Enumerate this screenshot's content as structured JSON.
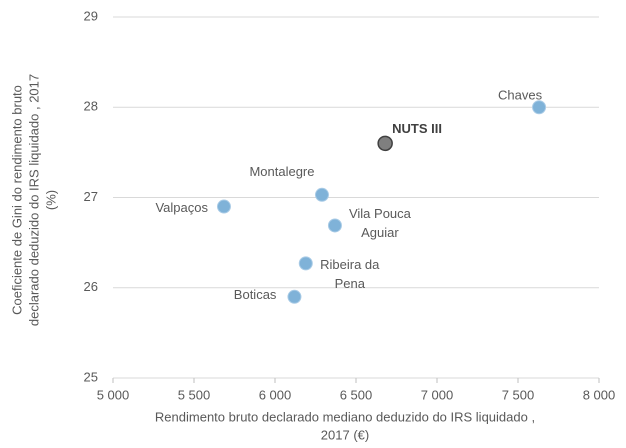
{
  "chart_data": {
    "type": "scatter",
    "points": [
      {
        "label": [
          "Chaves"
        ],
        "x": 7630,
        "y": 28.0,
        "color": "#7fb2d8"
      },
      {
        "label": [
          "NUTS III"
        ],
        "x": 6680,
        "y": 27.6,
        "color": "#7f7f7f"
      },
      {
        "label": [
          "Montalegre"
        ],
        "x": 6290,
        "y": 27.03,
        "color": "#7fb2d8"
      },
      {
        "label": [
          "Valpaços"
        ],
        "x": 5685,
        "y": 26.9,
        "color": "#7fb2d8"
      },
      {
        "label": [
          "Vila Pouca",
          "Aguiar"
        ],
        "x": 6370,
        "y": 26.69,
        "color": "#7fb2d8"
      },
      {
        "label": [
          "Ribeira da",
          "Pena"
        ],
        "x": 6190,
        "y": 26.27,
        "color": "#7fb2d8"
      },
      {
        "label": [
          "Boticas"
        ],
        "x": 6120,
        "y": 25.9,
        "color": "#7fb2d8"
      }
    ],
    "x_label": [
      "Rendimento bruto declarado mediano deduzido do IRS liquidado ,",
      "2017 (€)"
    ],
    "y_label": [
      "Coeficiente de Gini do rendimento bruto",
      "declarado deduzido do IRS liquidado , 2017",
      "(%)"
    ],
    "xlim": [
      5000,
      8000
    ],
    "xticks": [
      {
        "value": 5000,
        "label": "5 000"
      },
      {
        "value": 5500,
        "label": "5 500"
      },
      {
        "value": 6000,
        "label": "6 000"
      },
      {
        "value": 6500,
        "label": "6 500"
      },
      {
        "value": 7000,
        "label": "7 000"
      },
      {
        "value": 7500,
        "label": "7 500"
      },
      {
        "value": 8000,
        "label": "8 000"
      }
    ],
    "ylim": [
      25,
      29
    ],
    "yticks": [
      25,
      26,
      27,
      28,
      29
    ],
    "grid": true
  }
}
